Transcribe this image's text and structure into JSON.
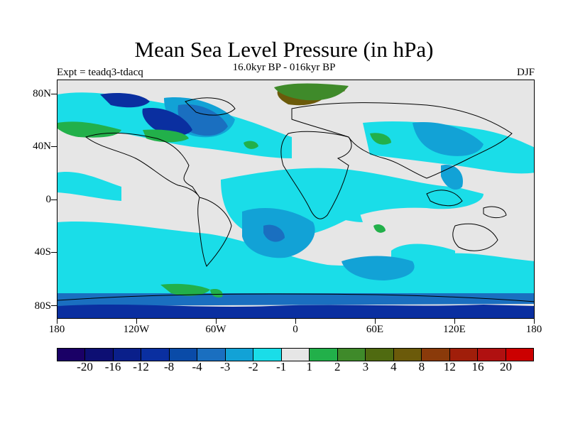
{
  "header": {
    "title": "Mean Sea Level Pressure (in hPa)",
    "subtitle": "16.0kyr BP - 016kyr BP",
    "left_label": "Expt = teadq3-tdacq",
    "right_label": "DJF"
  },
  "axes": {
    "y_labels": [
      "80N",
      "40N",
      "0",
      "40S",
      "80S"
    ],
    "x_labels": [
      "180",
      "120W",
      "60W",
      "0",
      "60E",
      "120E",
      "180"
    ]
  },
  "colorbar": {
    "labels": [
      "-20",
      "-16",
      "-12",
      "-8",
      "-4",
      "-3",
      "-2",
      "-1",
      "1",
      "2",
      "3",
      "4",
      "8",
      "12",
      "16",
      "20"
    ],
    "colors": [
      "#1a0066",
      "#0d0f73",
      "#0a1f8a",
      "#0a2fa0",
      "#0a4ba8",
      "#1a6fc0",
      "#12a2d6",
      "#1adde8",
      "#e6e6e6",
      "#22b04a",
      "#3f8a2a",
      "#4f6a10",
      "#6b5a0a",
      "#8a3a0a",
      "#a01e0a",
      "#b01010",
      "#cc0000"
    ]
  }
}
